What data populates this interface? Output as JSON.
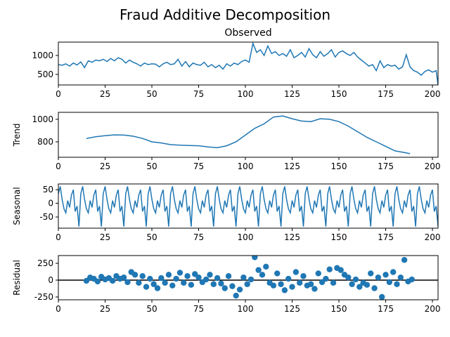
{
  "title": "Fraud Additive Decomposition",
  "chart_data": [
    {
      "type": "line",
      "title": "Observed",
      "color": "#1f77b4",
      "x": [
        0,
        2,
        4,
        6,
        8,
        10,
        12,
        14,
        16,
        18,
        20,
        22,
        24,
        26,
        28,
        30,
        32,
        34,
        36,
        38,
        40,
        42,
        44,
        46,
        48,
        50,
        52,
        54,
        56,
        58,
        60,
        62,
        64,
        66,
        68,
        70,
        72,
        74,
        76,
        78,
        80,
        82,
        84,
        86,
        88,
        90,
        92,
        94,
        96,
        98,
        100,
        102,
        104,
        106,
        108,
        110,
        112,
        114,
        116,
        118,
        120,
        122,
        124,
        126,
        128,
        130,
        132,
        134,
        136,
        138,
        140,
        142,
        144,
        146,
        148,
        150,
        152,
        154,
        156,
        158,
        160,
        162,
        164,
        166,
        168,
        170,
        172,
        174,
        176,
        178,
        180,
        182,
        184,
        186,
        188,
        190,
        192,
        194,
        196,
        198,
        200,
        202,
        203
      ],
      "values": [
        760,
        740,
        780,
        720,
        800,
        750,
        830,
        680,
        860,
        820,
        880,
        860,
        900,
        840,
        920,
        860,
        940,
        900,
        800,
        880,
        820,
        780,
        720,
        800,
        760,
        780,
        770,
        700,
        780,
        820,
        760,
        780,
        900,
        720,
        840,
        700,
        800,
        760,
        740,
        820,
        700,
        760,
        680,
        740,
        640,
        780,
        720,
        800,
        760,
        840,
        880,
        820,
        1320,
        1080,
        1150,
        1000,
        1250,
        1050,
        1100,
        1000,
        1050,
        980,
        1150,
        940,
        1000,
        1080,
        960,
        1180,
        1020,
        940,
        1100,
        980,
        1050,
        1150,
        960,
        1080,
        1120,
        1050,
        1000,
        1080,
        960,
        880,
        800,
        720,
        760,
        600,
        860,
        680,
        760,
        720,
        740,
        640,
        700,
        1020,
        700,
        600,
        560,
        480,
        580,
        620,
        560,
        600,
        220
      ],
      "xlim": [
        0,
        203
      ],
      "xticks": [
        0,
        25,
        50,
        75,
        100,
        125,
        150,
        175,
        200
      ],
      "ylim": [
        222,
        1352
      ],
      "yticks": [
        500,
        1000
      ]
    },
    {
      "type": "line",
      "ylabel": "Trend",
      "color": "#1f77b4",
      "x": [
        15,
        20,
        25,
        30,
        35,
        40,
        45,
        50,
        55,
        60,
        65,
        70,
        75,
        80,
        85,
        90,
        95,
        100,
        105,
        110,
        115,
        120,
        125,
        130,
        135,
        140,
        145,
        150,
        155,
        160,
        165,
        170,
        175,
        180,
        185,
        188
      ],
      "values": [
        830,
        845,
        855,
        862,
        860,
        850,
        830,
        800,
        790,
        775,
        770,
        768,
        765,
        755,
        748,
        765,
        800,
        860,
        920,
        960,
        1020,
        1030,
        1005,
        985,
        980,
        1005,
        1000,
        980,
        940,
        890,
        840,
        800,
        760,
        720,
        705,
        695
      ],
      "xlim": [
        0,
        203
      ],
      "xticks": [
        0,
        25,
        50,
        75,
        100,
        125,
        150,
        175,
        200
      ],
      "ylim": [
        663,
        1062
      ],
      "yticks": [
        800,
        1000
      ]
    },
    {
      "type": "line",
      "ylabel": "Seasonal",
      "color": "#1f77b4",
      "x": [
        0,
        1,
        2,
        3,
        4,
        5,
        6,
        7,
        8,
        9,
        10,
        11,
        12,
        13,
        14,
        15,
        16,
        17,
        18,
        19,
        20,
        21,
        22,
        23,
        24,
        25,
        26,
        27,
        28,
        29,
        30,
        31,
        32,
        33,
        34,
        35,
        36,
        37,
        38,
        39,
        40,
        41,
        42,
        43,
        44,
        45,
        46,
        47,
        48,
        49,
        50,
        51,
        52,
        53,
        54,
        55,
        56,
        57,
        58,
        59,
        60,
        61,
        62,
        63,
        64,
        65,
        66,
        67,
        68,
        69,
        70,
        71,
        72,
        73,
        74,
        75,
        76,
        77,
        78,
        79,
        80,
        81,
        82,
        83,
        84,
        85,
        86,
        87,
        88,
        89,
        90,
        91,
        92,
        93,
        94,
        95,
        96,
        97,
        98,
        99,
        100,
        101,
        102,
        103,
        104,
        105,
        106,
        107,
        108,
        109,
        110,
        111,
        112,
        113,
        114,
        115,
        116,
        117,
        118,
        119,
        120,
        121,
        122,
        123,
        124,
        125,
        126,
        127,
        128,
        129,
        130,
        131,
        132,
        133,
        134,
        135,
        136,
        137,
        138,
        139,
        140,
        141,
        142,
        143,
        144,
        145,
        146,
        147,
        148,
        149,
        150,
        151,
        152,
        153,
        154,
        155,
        156,
        157,
        158,
        159,
        160,
        161,
        162,
        163,
        164,
        165,
        166,
        167,
        168,
        169,
        170,
        171,
        172,
        173,
        174,
        175,
        176,
        177,
        178,
        179,
        180,
        181,
        182,
        183,
        184,
        185,
        186,
        187,
        188,
        189,
        190,
        191,
        192,
        193,
        194,
        195,
        196,
        197,
        198,
        199,
        200,
        201,
        202,
        203
      ],
      "values": [
        35,
        62,
        15,
        -20,
        -35,
        10,
        -15,
        30,
        50,
        -30,
        -10,
        -85,
        35,
        62,
        15,
        -20,
        -35,
        10,
        -15,
        30,
        50,
        -30,
        -10,
        -85,
        35,
        62,
        15,
        -20,
        -35,
        10,
        -15,
        30,
        50,
        -30,
        -10,
        -85,
        35,
        62,
        15,
        -20,
        -35,
        10,
        -15,
        30,
        50,
        -30,
        -10,
        -85,
        35,
        62,
        15,
        -20,
        -35,
        10,
        -15,
        30,
        50,
        -30,
        -10,
        -85,
        35,
        62,
        15,
        -20,
        -35,
        10,
        -15,
        30,
        50,
        -30,
        -10,
        -85,
        35,
        62,
        15,
        -20,
        -35,
        10,
        -15,
        30,
        50,
        -30,
        -10,
        -85,
        35,
        62,
        15,
        -20,
        -35,
        10,
        -15,
        30,
        50,
        -30,
        -10,
        -85,
        35,
        62,
        15,
        -20,
        -35,
        10,
        -15,
        30,
        50,
        -30,
        -10,
        -85,
        35,
        62,
        15,
        -20,
        -35,
        10,
        -15,
        30,
        50,
        -30,
        -10,
        -85,
        35,
        62,
        15,
        -20,
        -35,
        10,
        -15,
        30,
        50,
        -30,
        -10,
        -85,
        35,
        62,
        15,
        -20,
        -35,
        10,
        -15,
        30,
        50,
        -30,
        -10,
        -85,
        35,
        62,
        15,
        -20,
        -35,
        10,
        -15,
        30,
        50,
        -30,
        -10,
        -85,
        35,
        62,
        15,
        -20,
        -35,
        10,
        -15,
        30,
        50,
        -30,
        -10,
        -85,
        35,
        62,
        15,
        -20,
        -35,
        10,
        -15,
        30,
        50,
        -30,
        -10,
        -85,
        35,
        62,
        15,
        -20,
        -35,
        10,
        -15,
        30,
        50,
        -30,
        -10,
        -85,
        35,
        62,
        15,
        -20,
        -35,
        10,
        -15,
        30,
        50,
        -30,
        -10,
        -85
      ],
      "xlim": [
        0,
        203
      ],
      "xticks": [
        0,
        25,
        50,
        75,
        100,
        125,
        150,
        175,
        200
      ],
      "ylim": [
        -91,
        71
      ],
      "yticks": [
        -50,
        0,
        50
      ]
    },
    {
      "type": "scatter",
      "ylabel": "Residual",
      "color": "#1f77b4",
      "x": [
        15,
        17,
        19,
        21,
        23,
        25,
        27,
        29,
        31,
        33,
        35,
        37,
        39,
        41,
        43,
        45,
        47,
        49,
        51,
        53,
        55,
        57,
        59,
        61,
        63,
        65,
        67,
        69,
        71,
        73,
        75,
        77,
        79,
        81,
        83,
        85,
        87,
        89,
        91,
        93,
        95,
        97,
        99,
        101,
        103,
        105,
        107,
        109,
        111,
        113,
        115,
        117,
        119,
        121,
        123,
        125,
        127,
        129,
        131,
        133,
        135,
        137,
        139,
        141,
        143,
        145,
        147,
        149,
        151,
        153,
        155,
        157,
        159,
        161,
        163,
        165,
        167,
        169,
        171,
        173,
        175,
        177,
        179,
        181,
        183,
        185,
        187,
        189
      ],
      "values": [
        -10,
        40,
        20,
        -20,
        50,
        10,
        30,
        -10,
        60,
        20,
        40,
        -30,
        120,
        80,
        -40,
        60,
        -100,
        20,
        -60,
        -120,
        30,
        -40,
        80,
        -80,
        20,
        110,
        -40,
        60,
        -70,
        90,
        40,
        -30,
        10,
        80,
        -60,
        30,
        -50,
        -120,
        60,
        -90,
        -230,
        -140,
        40,
        -60,
        10,
        340,
        150,
        80,
        200,
        -40,
        -80,
        100,
        -60,
        -150,
        20,
        -100,
        120,
        -40,
        60,
        -80,
        -60,
        -130,
        100,
        -30,
        20,
        160,
        -40,
        180,
        150,
        80,
        40,
        -60,
        10,
        -100,
        -40,
        -70,
        100,
        -120,
        40,
        -250,
        80,
        -30,
        120,
        -60,
        40,
        300,
        -20,
        10
      ],
      "xlim": [
        0,
        203
      ],
      "xticks": [
        0,
        25,
        50,
        75,
        100,
        125,
        150,
        175,
        200
      ],
      "ylim": [
        -292,
        365
      ],
      "yticks": [
        -250,
        0,
        250
      ]
    }
  ]
}
